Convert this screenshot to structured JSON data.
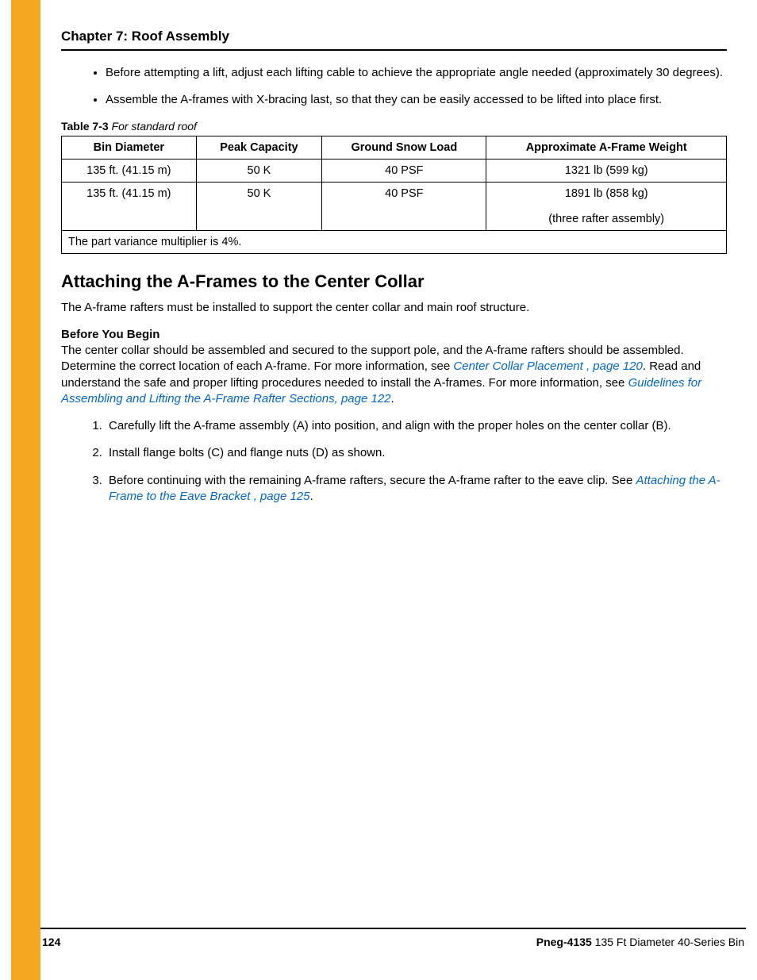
{
  "colors": {
    "sidebar": "#f5a623",
    "link": "#0066cc",
    "rule": "#000000",
    "text": "#000000",
    "background": "#ffffff"
  },
  "header": {
    "chapter_title": "Chapter 7: Roof Assembly"
  },
  "intro_bullets": [
    "Before attempting a lift, adjust each lifting cable to achieve the appropriate angle needed (approximately 30 degrees).",
    "Assemble the A-frames with X-bracing last, so that they can be easily accessed to be lifted into place first."
  ],
  "table": {
    "label": "Table 7-3",
    "caption": "For standard roof",
    "columns": [
      "Bin Diameter",
      "Peak Capacity",
      "Ground Snow Load",
      "Approximate A-Frame Weight"
    ],
    "rows": [
      [
        "135 ft. (41.15 m)",
        "50 K",
        "40 PSF",
        "1321 lb (599 kg)"
      ],
      [
        "135 ft. (41.15 m)",
        "50 K",
        "40 PSF",
        "1891 lb (858 kg)\n(three rafter assembly)"
      ]
    ],
    "footnote": "The part variance multiplier is 4%."
  },
  "section": {
    "heading": "Attaching the A-Frames to the Center Collar",
    "intro": "The A-frame rafters must be installed to support the center collar and main roof structure.",
    "before_label": "Before You Begin",
    "before_text_parts": [
      {
        "t": "text",
        "v": "The center collar should be assembled and secured to the support pole, and the A-frame rafters should be assembled. Determine the correct location of each A-frame. For more information, see "
      },
      {
        "t": "link",
        "v": "Center Collar Placement , page 120"
      },
      {
        "t": "text",
        "v": ". Read and understand the safe and proper lifting procedures needed to install the A-frames. For more information, see "
      },
      {
        "t": "link",
        "v": "Guidelines for Assembling and Lifting the A-Frame Rafter Sections, page 122"
      },
      {
        "t": "text",
        "v": "."
      }
    ],
    "steps": [
      [
        {
          "t": "text",
          "v": "Carefully lift the A-frame assembly (A) into position, and align with the proper holes on the center collar (B)."
        }
      ],
      [
        {
          "t": "text",
          "v": "Install flange bolts (C) and flange nuts (D) as shown."
        }
      ],
      [
        {
          "t": "text",
          "v": "Before continuing with the remaining A-frame rafters, secure the A-frame rafter to the eave clip. See "
        },
        {
          "t": "link",
          "v": "Attaching the A-Frame to the Eave Bracket , page 125"
        },
        {
          "t": "text",
          "v": "."
        }
      ]
    ]
  },
  "footer": {
    "page": "124",
    "doc_id": "Pneg-4135",
    "doc_title": " 135 Ft Diameter 40-Series Bin"
  }
}
